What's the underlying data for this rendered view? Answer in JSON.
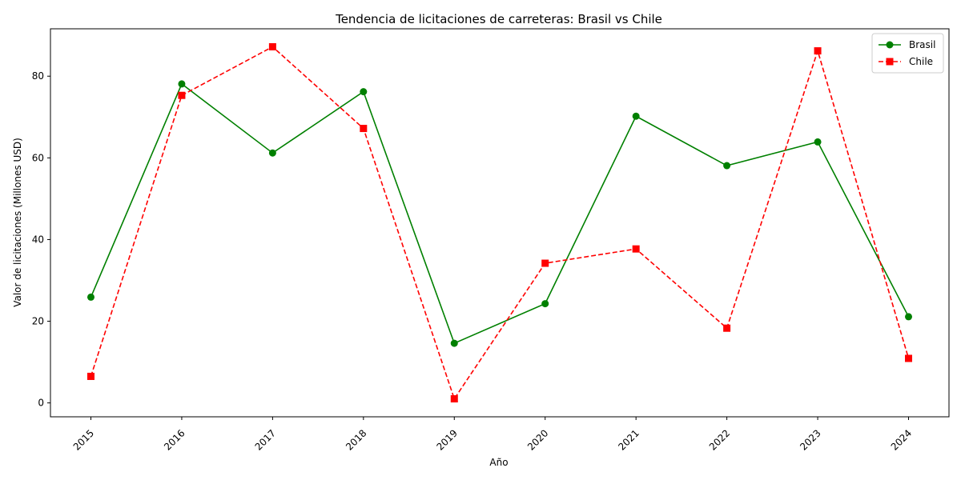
{
  "chart_data": {
    "type": "line",
    "title": "Tendencia de licitaciones de carreteras: Brasil vs Chile",
    "xlabel": "Año",
    "ylabel": "Valor de licitaciones (Millones USD)",
    "categories": [
      "2015",
      "2016",
      "2017",
      "2018",
      "2019",
      "2020",
      "2021",
      "2022",
      "2023",
      "2024"
    ],
    "ylim": [
      -3.4,
      91.6
    ],
    "yticks": [
      0,
      20,
      40,
      60,
      80
    ],
    "grid": false,
    "legend_position": "top-right",
    "series": [
      {
        "name": "Brasil",
        "color": "#008000",
        "line_style": "solid",
        "marker": "circle",
        "values": [
          25.9,
          78.1,
          61.2,
          76.2,
          14.6,
          24.3,
          70.2,
          58.1,
          63.9,
          21.1
        ]
      },
      {
        "name": "Chile",
        "color": "#ff0000",
        "line_style": "dashed",
        "marker": "square",
        "values": [
          6.5,
          75.3,
          87.2,
          67.2,
          1.0,
          34.2,
          37.7,
          18.3,
          86.2,
          10.9
        ]
      }
    ]
  }
}
